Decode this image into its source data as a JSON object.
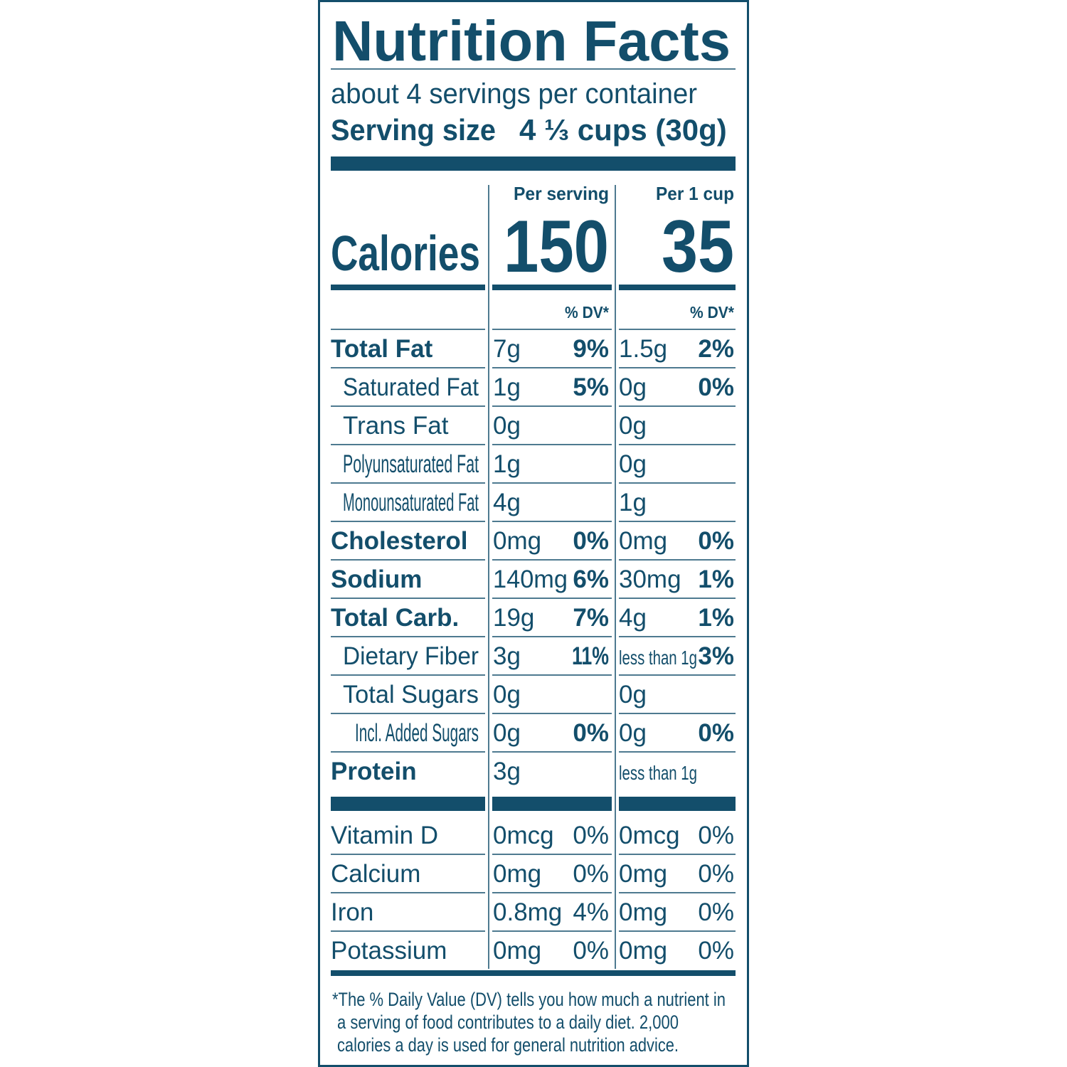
{
  "header": {
    "title": "Nutrition Facts",
    "servings": "about 4 servings per container",
    "serving_size_label": "Serving size",
    "serving_size_value": "4 ⅓ cups (30g)"
  },
  "columns": {
    "per_serving": "Per serving",
    "per_cup": "Per 1 cup",
    "dv_header": "% DV*"
  },
  "calories": {
    "label": "Calories",
    "per_serving": 150,
    "per_cup": 35
  },
  "nutrients": [
    {
      "name": "Total Fat",
      "bold": true,
      "indent": 0,
      "ps_amount": "7g",
      "ps_dv": "9%",
      "pc_amount": "1.5g",
      "pc_dv": "2%"
    },
    {
      "name": "Saturated Fat",
      "bold": false,
      "indent": 1,
      "ps_amount": "1g",
      "ps_dv": "5%",
      "pc_amount": "0g",
      "pc_dv": "0%"
    },
    {
      "name": "Trans Fat",
      "bold": false,
      "indent": 1,
      "ps_amount": "0g",
      "pc_amount": "0g"
    },
    {
      "name": "Polyunsaturated Fat",
      "bold": false,
      "indent": 1,
      "ps_amount": "1g",
      "pc_amount": "0g"
    },
    {
      "name": "Monounsaturated Fat",
      "bold": false,
      "indent": 1,
      "ps_amount": "4g",
      "pc_amount": "1g"
    },
    {
      "name": "Cholesterol",
      "bold": true,
      "indent": 0,
      "ps_amount": "0mg",
      "ps_dv": "0%",
      "pc_amount": "0mg",
      "pc_dv": "0%"
    },
    {
      "name": "Sodium",
      "bold": true,
      "indent": 0,
      "ps_amount": "140mg",
      "ps_dv": "6%",
      "pc_amount": "30mg",
      "pc_dv": "1%"
    },
    {
      "name": "Total Carb.",
      "bold": true,
      "indent": 0,
      "ps_amount": "19g",
      "ps_dv": "7%",
      "pc_amount": "4g",
      "pc_dv": "1%"
    },
    {
      "name": "Dietary Fiber",
      "bold": false,
      "indent": 1,
      "ps_amount": "3g",
      "ps_dv": "11%",
      "pc_amount": "less than 1g",
      "pc_dv": "3%"
    },
    {
      "name": "Total Sugars",
      "bold": false,
      "indent": 1,
      "ps_amount": "0g",
      "pc_amount": "0g"
    },
    {
      "name": "Incl. Added Sugars",
      "bold": false,
      "indent": 2,
      "ps_amount": "0g",
      "ps_dv": "0%",
      "pc_amount": "0g",
      "pc_dv": "0%"
    },
    {
      "name": "Protein",
      "bold": true,
      "indent": 0,
      "ps_amount": "3g",
      "pc_amount": "less than 1g"
    }
  ],
  "vitamins": [
    {
      "name": "Vitamin D",
      "ps_amount": "0mcg",
      "ps_dv": "0%",
      "pc_amount": "0mcg",
      "pc_dv": "0%"
    },
    {
      "name": "Calcium",
      "ps_amount": "0mg",
      "ps_dv": "0%",
      "pc_amount": "0mg",
      "pc_dv": "0%"
    },
    {
      "name": "Iron",
      "ps_amount": "0.8mg",
      "ps_dv": "4%",
      "pc_amount": "0mg",
      "pc_dv": "0%"
    },
    {
      "name": "Potassium",
      "ps_amount": "0mg",
      "ps_dv": "0%",
      "pc_amount": "0mg",
      "pc_dv": "0%"
    }
  ],
  "footnote": [
    "*The % Daily Value (DV) tells you how much a nutrient in",
    "a serving of food contributes to a daily diet. 2,000",
    "calories a day is used for general nutrition advice."
  ]
}
